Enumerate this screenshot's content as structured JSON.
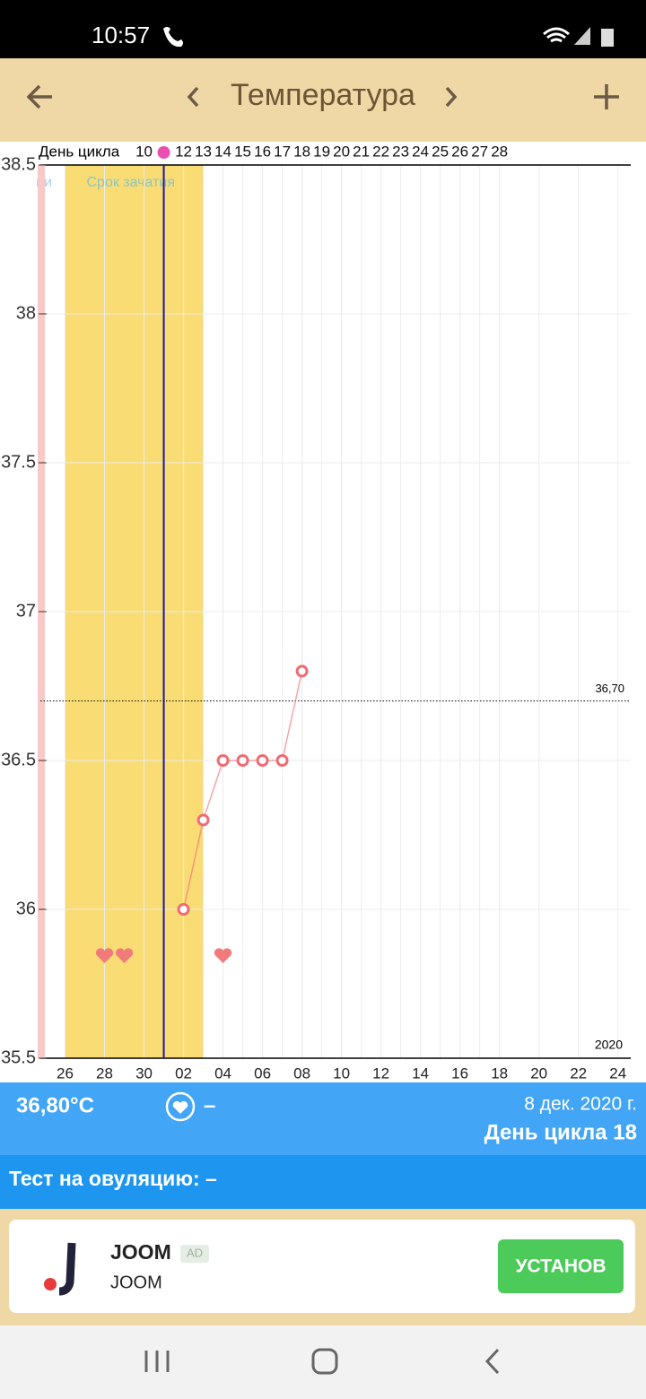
{
  "status_bar": {
    "time": "10:57"
  },
  "header": {
    "title": "Температура"
  },
  "chart_data": {
    "type": "line",
    "x_axis_label": "День цикла",
    "x": [
      12,
      13,
      14,
      15,
      16,
      17,
      18
    ],
    "values": [
      36.0,
      36.3,
      36.5,
      36.5,
      36.5,
      36.5,
      36.8
    ],
    "color": "#ee6b73",
    "ylim": [
      35.5,
      38.5
    ],
    "yticks": [
      35.5,
      36,
      36.5,
      37,
      37.5,
      38,
      38.5
    ],
    "xlim": [
      4.75,
      34.65
    ],
    "xticks": [
      {
        "value": 6,
        "label": "26"
      },
      {
        "value": 8,
        "label": "28"
      },
      {
        "value": 10,
        "label": "30"
      },
      {
        "value": 12,
        "label": "02"
      },
      {
        "value": 14,
        "label": "04"
      },
      {
        "value": 16,
        "label": "06"
      },
      {
        "value": 18,
        "label": "08"
      },
      {
        "value": 20,
        "label": "10"
      },
      {
        "value": 22,
        "label": "12"
      },
      {
        "value": 24,
        "label": "14"
      },
      {
        "value": 26,
        "label": "16"
      },
      {
        "value": 28,
        "label": "18"
      },
      {
        "value": 30,
        "label": "20"
      },
      {
        "value": 32,
        "label": "22"
      },
      {
        "value": 34,
        "label": "24"
      }
    ],
    "cycle_day_ticks": [
      10,
      12,
      13,
      14,
      15,
      16,
      17,
      18,
      19,
      20,
      21,
      22,
      23,
      24,
      25,
      26,
      27,
      28
    ],
    "fertile_window": {
      "label": "Срок зачатия",
      "range": [
        6,
        13
      ],
      "color": "#f9dc74"
    },
    "ovulation_day": 11,
    "coverline": {
      "value": 36.7,
      "label": "36,70"
    },
    "intercourse_days": [
      8,
      9,
      14
    ],
    "year_label": "2020",
    "clipped_label": "ии",
    "grid": true
  },
  "summary": {
    "temperature": "36,80°C",
    "heart_value": "–",
    "date": "8 дек. 2020 г.",
    "cycle_day": "День цикла 18",
    "ovulation_test": "Тест на овуляцию: –"
  },
  "ad": {
    "brand": "JOOM",
    "badge": "AD",
    "name": "JOOM",
    "button": "УСТАНОВ"
  }
}
